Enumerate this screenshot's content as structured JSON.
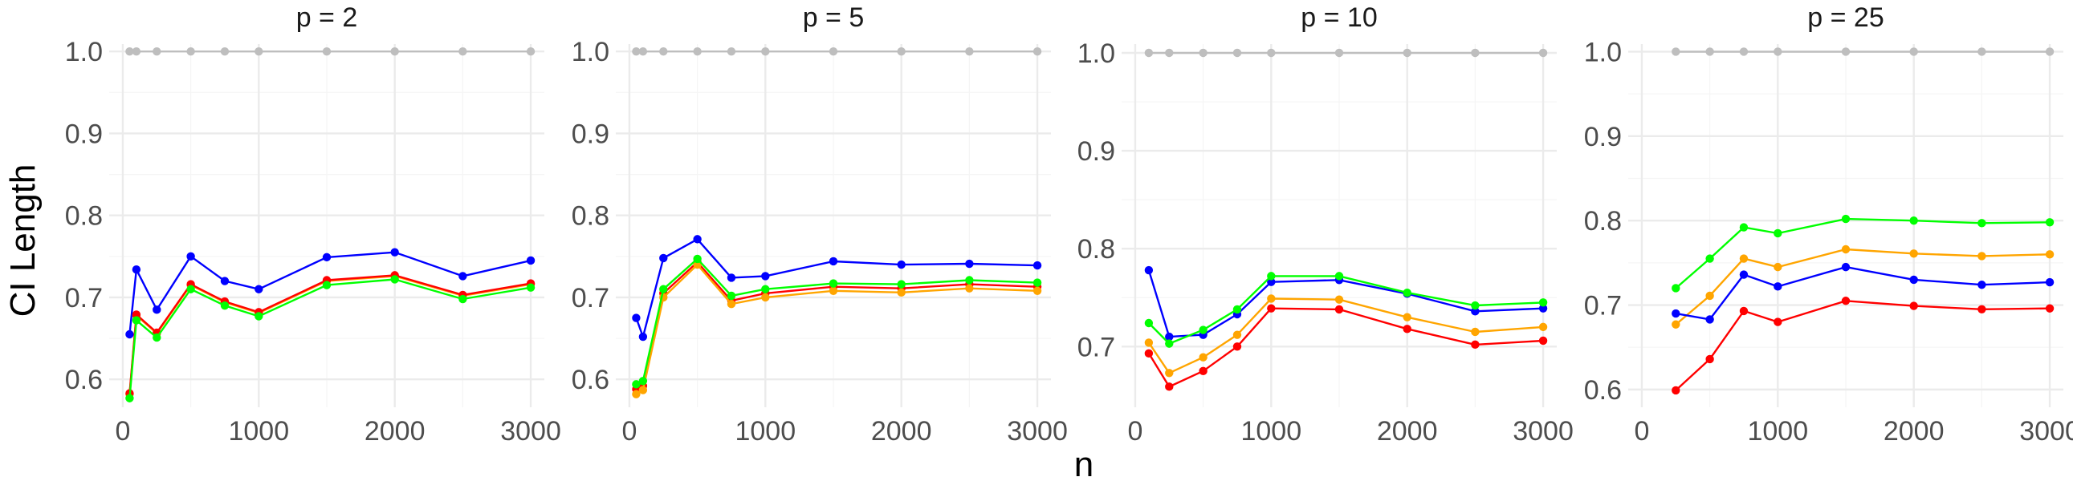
{
  "chart_data": {
    "type": "line",
    "xlabel": "n",
    "ylabel": "CI Length",
    "colors": {
      "reference": "#bebebe",
      "blue": "#0000ff",
      "red": "#ff0000",
      "green": "#00ff00",
      "orange": "#ffa500"
    },
    "grid": true,
    "panels": [
      {
        "title": "p = 2",
        "xlim": [
          -100,
          3100
        ],
        "ylim": [
          0.566,
          1.009
        ],
        "xticks": [
          0,
          1000,
          2000,
          3000
        ],
        "xtick_labels": [
          "0",
          "1000",
          "2000",
          "3000"
        ],
        "yticks": [
          0.6,
          0.7,
          0.8,
          0.9,
          1.0
        ],
        "ytick_labels": [
          "0.6",
          "0.7",
          "0.8",
          "0.9",
          "1.0"
        ],
        "series": [
          {
            "color": "reference",
            "x": [
              50,
              100,
              250,
              500,
              750,
              1000,
              1500,
              2000,
              2500,
              3000
            ],
            "y": [
              1.0,
              1.0,
              1.0,
              1.0,
              1.0,
              1.0,
              1.0,
              1.0,
              1.0,
              1.0
            ]
          },
          {
            "color": "blue",
            "x": [
              50,
              100,
              250,
              500,
              750,
              1000,
              1500,
              2000,
              2500,
              3000
            ],
            "y": [
              0.655,
              0.734,
              0.685,
              0.75,
              0.72,
              0.71,
              0.749,
              0.755,
              0.726,
              0.745
            ]
          },
          {
            "color": "orange",
            "x": [
              50,
              100,
              250,
              500,
              750,
              1000,
              1500,
              2000,
              2500,
              3000
            ],
            "y": [
              0.582,
              0.678,
              0.656,
              0.715,
              0.694,
              0.681,
              0.72,
              0.726,
              0.702,
              0.716
            ]
          },
          {
            "color": "red",
            "x": [
              50,
              100,
              250,
              500,
              750,
              1000,
              1500,
              2000,
              2500,
              3000
            ],
            "y": [
              0.583,
              0.679,
              0.657,
              0.716,
              0.695,
              0.682,
              0.721,
              0.727,
              0.703,
              0.717
            ]
          },
          {
            "color": "green",
            "x": [
              50,
              100,
              250,
              500,
              750,
              1000,
              1500,
              2000,
              2500,
              3000
            ],
            "y": [
              0.577,
              0.672,
              0.651,
              0.71,
              0.69,
              0.677,
              0.715,
              0.722,
              0.698,
              0.712
            ]
          }
        ]
      },
      {
        "title": "p = 5",
        "xlim": [
          -100,
          3100
        ],
        "ylim": [
          0.566,
          1.009
        ],
        "xticks": [
          0,
          1000,
          2000,
          3000
        ],
        "xtick_labels": [
          "0",
          "1000",
          "2000",
          "3000"
        ],
        "yticks": [
          0.6,
          0.7,
          0.8,
          0.9,
          1.0
        ],
        "ytick_labels": [
          "0.6",
          "0.7",
          "0.8",
          "0.9",
          "1.0"
        ],
        "series": [
          {
            "color": "reference",
            "x": [
              50,
              100,
              250,
              500,
              750,
              1000,
              1500,
              2000,
              2500,
              3000
            ],
            "y": [
              1.0,
              1.0,
              1.0,
              1.0,
              1.0,
              1.0,
              1.0,
              1.0,
              1.0,
              1.0
            ]
          },
          {
            "color": "blue",
            "x": [
              50,
              100,
              250,
              500,
              750,
              1000,
              1500,
              2000,
              2500,
              3000
            ],
            "y": [
              0.675,
              0.652,
              0.748,
              0.771,
              0.724,
              0.726,
              0.744,
              0.74,
              0.741,
              0.739
            ]
          },
          {
            "color": "red",
            "x": [
              50,
              100,
              250,
              500,
              750,
              1000,
              1500,
              2000,
              2500,
              3000
            ],
            "y": [
              0.588,
              0.592,
              0.705,
              0.743,
              0.696,
              0.705,
              0.713,
              0.711,
              0.716,
              0.713
            ]
          },
          {
            "color": "orange",
            "x": [
              50,
              100,
              250,
              500,
              750,
              1000,
              1500,
              2000,
              2500,
              3000
            ],
            "y": [
              0.582,
              0.587,
              0.7,
              0.74,
              0.692,
              0.7,
              0.708,
              0.706,
              0.711,
              0.708
            ]
          },
          {
            "color": "green",
            "x": [
              50,
              100,
              250,
              500,
              750,
              1000,
              1500,
              2000,
              2500,
              3000
            ],
            "y": [
              0.594,
              0.598,
              0.71,
              0.747,
              0.702,
              0.71,
              0.717,
              0.716,
              0.721,
              0.718
            ]
          }
        ]
      },
      {
        "title": "p = 10",
        "xlim": [
          -100,
          3100
        ],
        "ylim": [
          0.638,
          1.009
        ],
        "xticks": [
          0,
          1000,
          2000,
          3000
        ],
        "xtick_labels": [
          "0",
          "1000",
          "2000",
          "3000"
        ],
        "yticks": [
          0.7,
          0.8,
          0.9,
          1.0
        ],
        "ytick_labels": [
          "0.7",
          "0.8",
          "0.9",
          "1.0"
        ],
        "series": [
          {
            "color": "reference",
            "x": [
              100,
              250,
              500,
              750,
              1000,
              1500,
              2000,
              2500,
              3000
            ],
            "y": [
              1.0,
              1.0,
              1.0,
              1.0,
              1.0,
              1.0,
              1.0,
              1.0,
              1.0
            ]
          },
          {
            "color": "blue",
            "x": [
              100,
              250,
              500,
              750,
              1000,
              1500,
              2000,
              2500,
              3000
            ],
            "y": [
              0.778,
              0.71,
              0.712,
              0.733,
              0.766,
              0.768,
              0.754,
              0.736,
              0.739
            ]
          },
          {
            "color": "green",
            "x": [
              100,
              250,
              500,
              750,
              1000,
              1500,
              2000,
              2500,
              3000
            ],
            "y": [
              0.724,
              0.703,
              0.717,
              0.738,
              0.772,
              0.772,
              0.755,
              0.742,
              0.745
            ]
          },
          {
            "color": "orange",
            "x": [
              100,
              250,
              500,
              750,
              1000,
              1500,
              2000,
              2500,
              3000
            ],
            "y": [
              0.704,
              0.673,
              0.689,
              0.712,
              0.749,
              0.748,
              0.73,
              0.715,
              0.72
            ]
          },
          {
            "color": "red",
            "x": [
              100,
              250,
              500,
              750,
              1000,
              1500,
              2000,
              2500,
              3000
            ],
            "y": [
              0.693,
              0.659,
              0.675,
              0.7,
              0.739,
              0.738,
              0.718,
              0.702,
              0.706
            ]
          }
        ]
      },
      {
        "title": "p = 25",
        "xlim": [
          -100,
          3100
        ],
        "ylim": [
          0.579,
          1.009
        ],
        "xticks": [
          0,
          1000,
          2000,
          3000
        ],
        "xtick_labels": [
          "0",
          "1000",
          "2000",
          "3000"
        ],
        "yticks": [
          0.6,
          0.7,
          0.8,
          0.9,
          1.0
        ],
        "ytick_labels": [
          "0.6",
          "0.7",
          "0.8",
          "0.9",
          "1.0"
        ],
        "series": [
          {
            "color": "reference",
            "x": [
              250,
              500,
              750,
              1000,
              1500,
              2000,
              2500,
              3000
            ],
            "y": [
              1.0,
              1.0,
              1.0,
              1.0,
              1.0,
              1.0,
              1.0,
              1.0
            ]
          },
          {
            "color": "green",
            "x": [
              250,
              500,
              750,
              1000,
              1500,
              2000,
              2500,
              3000
            ],
            "y": [
              0.72,
              0.755,
              0.792,
              0.785,
              0.802,
              0.8,
              0.797,
              0.798
            ]
          },
          {
            "color": "orange",
            "x": [
              250,
              500,
              750,
              1000,
              1500,
              2000,
              2500,
              3000
            ],
            "y": [
              0.677,
              0.711,
              0.755,
              0.745,
              0.766,
              0.761,
              0.758,
              0.76
            ]
          },
          {
            "color": "blue",
            "x": [
              250,
              500,
              750,
              1000,
              1500,
              2000,
              2500,
              3000
            ],
            "y": [
              0.69,
              0.683,
              0.736,
              0.722,
              0.745,
              0.73,
              0.724,
              0.727
            ]
          },
          {
            "color": "red",
            "x": [
              250,
              500,
              750,
              1000,
              1500,
              2000,
              2500,
              3000
            ],
            "y": [
              0.599,
              0.636,
              0.693,
              0.68,
              0.705,
              0.699,
              0.695,
              0.696
            ]
          }
        ]
      }
    ]
  }
}
